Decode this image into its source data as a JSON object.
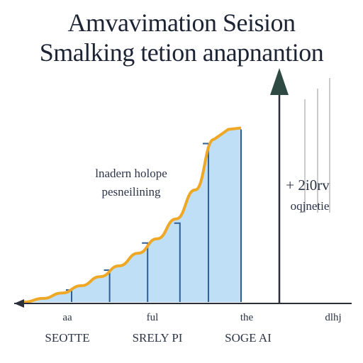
{
  "title_line1": "Amvavimation Seision",
  "title_line2": "Smalking tetion anapnantion",
  "annotation_left": [
    "lnadern holope",
    "pesneilining"
  ],
  "annotation_right": [
    "+ 2i0rv",
    "oqjnetie"
  ],
  "colors": {
    "fill": "#bfdff7",
    "curve": "#eea825",
    "bars": "#2f5e95",
    "axis": "#2a2f3a",
    "arrow": "#2e4a43"
  },
  "chart_data": {
    "type": "area",
    "title": "Amvavimation Seision / Smalking tetion anapnantion",
    "categories": [
      "",
      "",
      "",
      ""
    ],
    "x": [
      0,
      1,
      2,
      3,
      4,
      5,
      6,
      7,
      8,
      9,
      10
    ],
    "values": [
      0,
      2,
      5,
      9,
      14,
      20,
      27,
      35,
      46,
      62,
      90
    ],
    "tick_labels_top": [
      "aa",
      "ful",
      "the",
      "dlhj"
    ],
    "tick_labels_bottom": [
      "SEOTTE",
      "SRELY PI",
      "SOGE AI",
      ""
    ],
    "xlabel": "",
    "ylabel": "",
    "ylim": [
      0,
      120
    ],
    "grid": false,
    "legend": "none"
  }
}
